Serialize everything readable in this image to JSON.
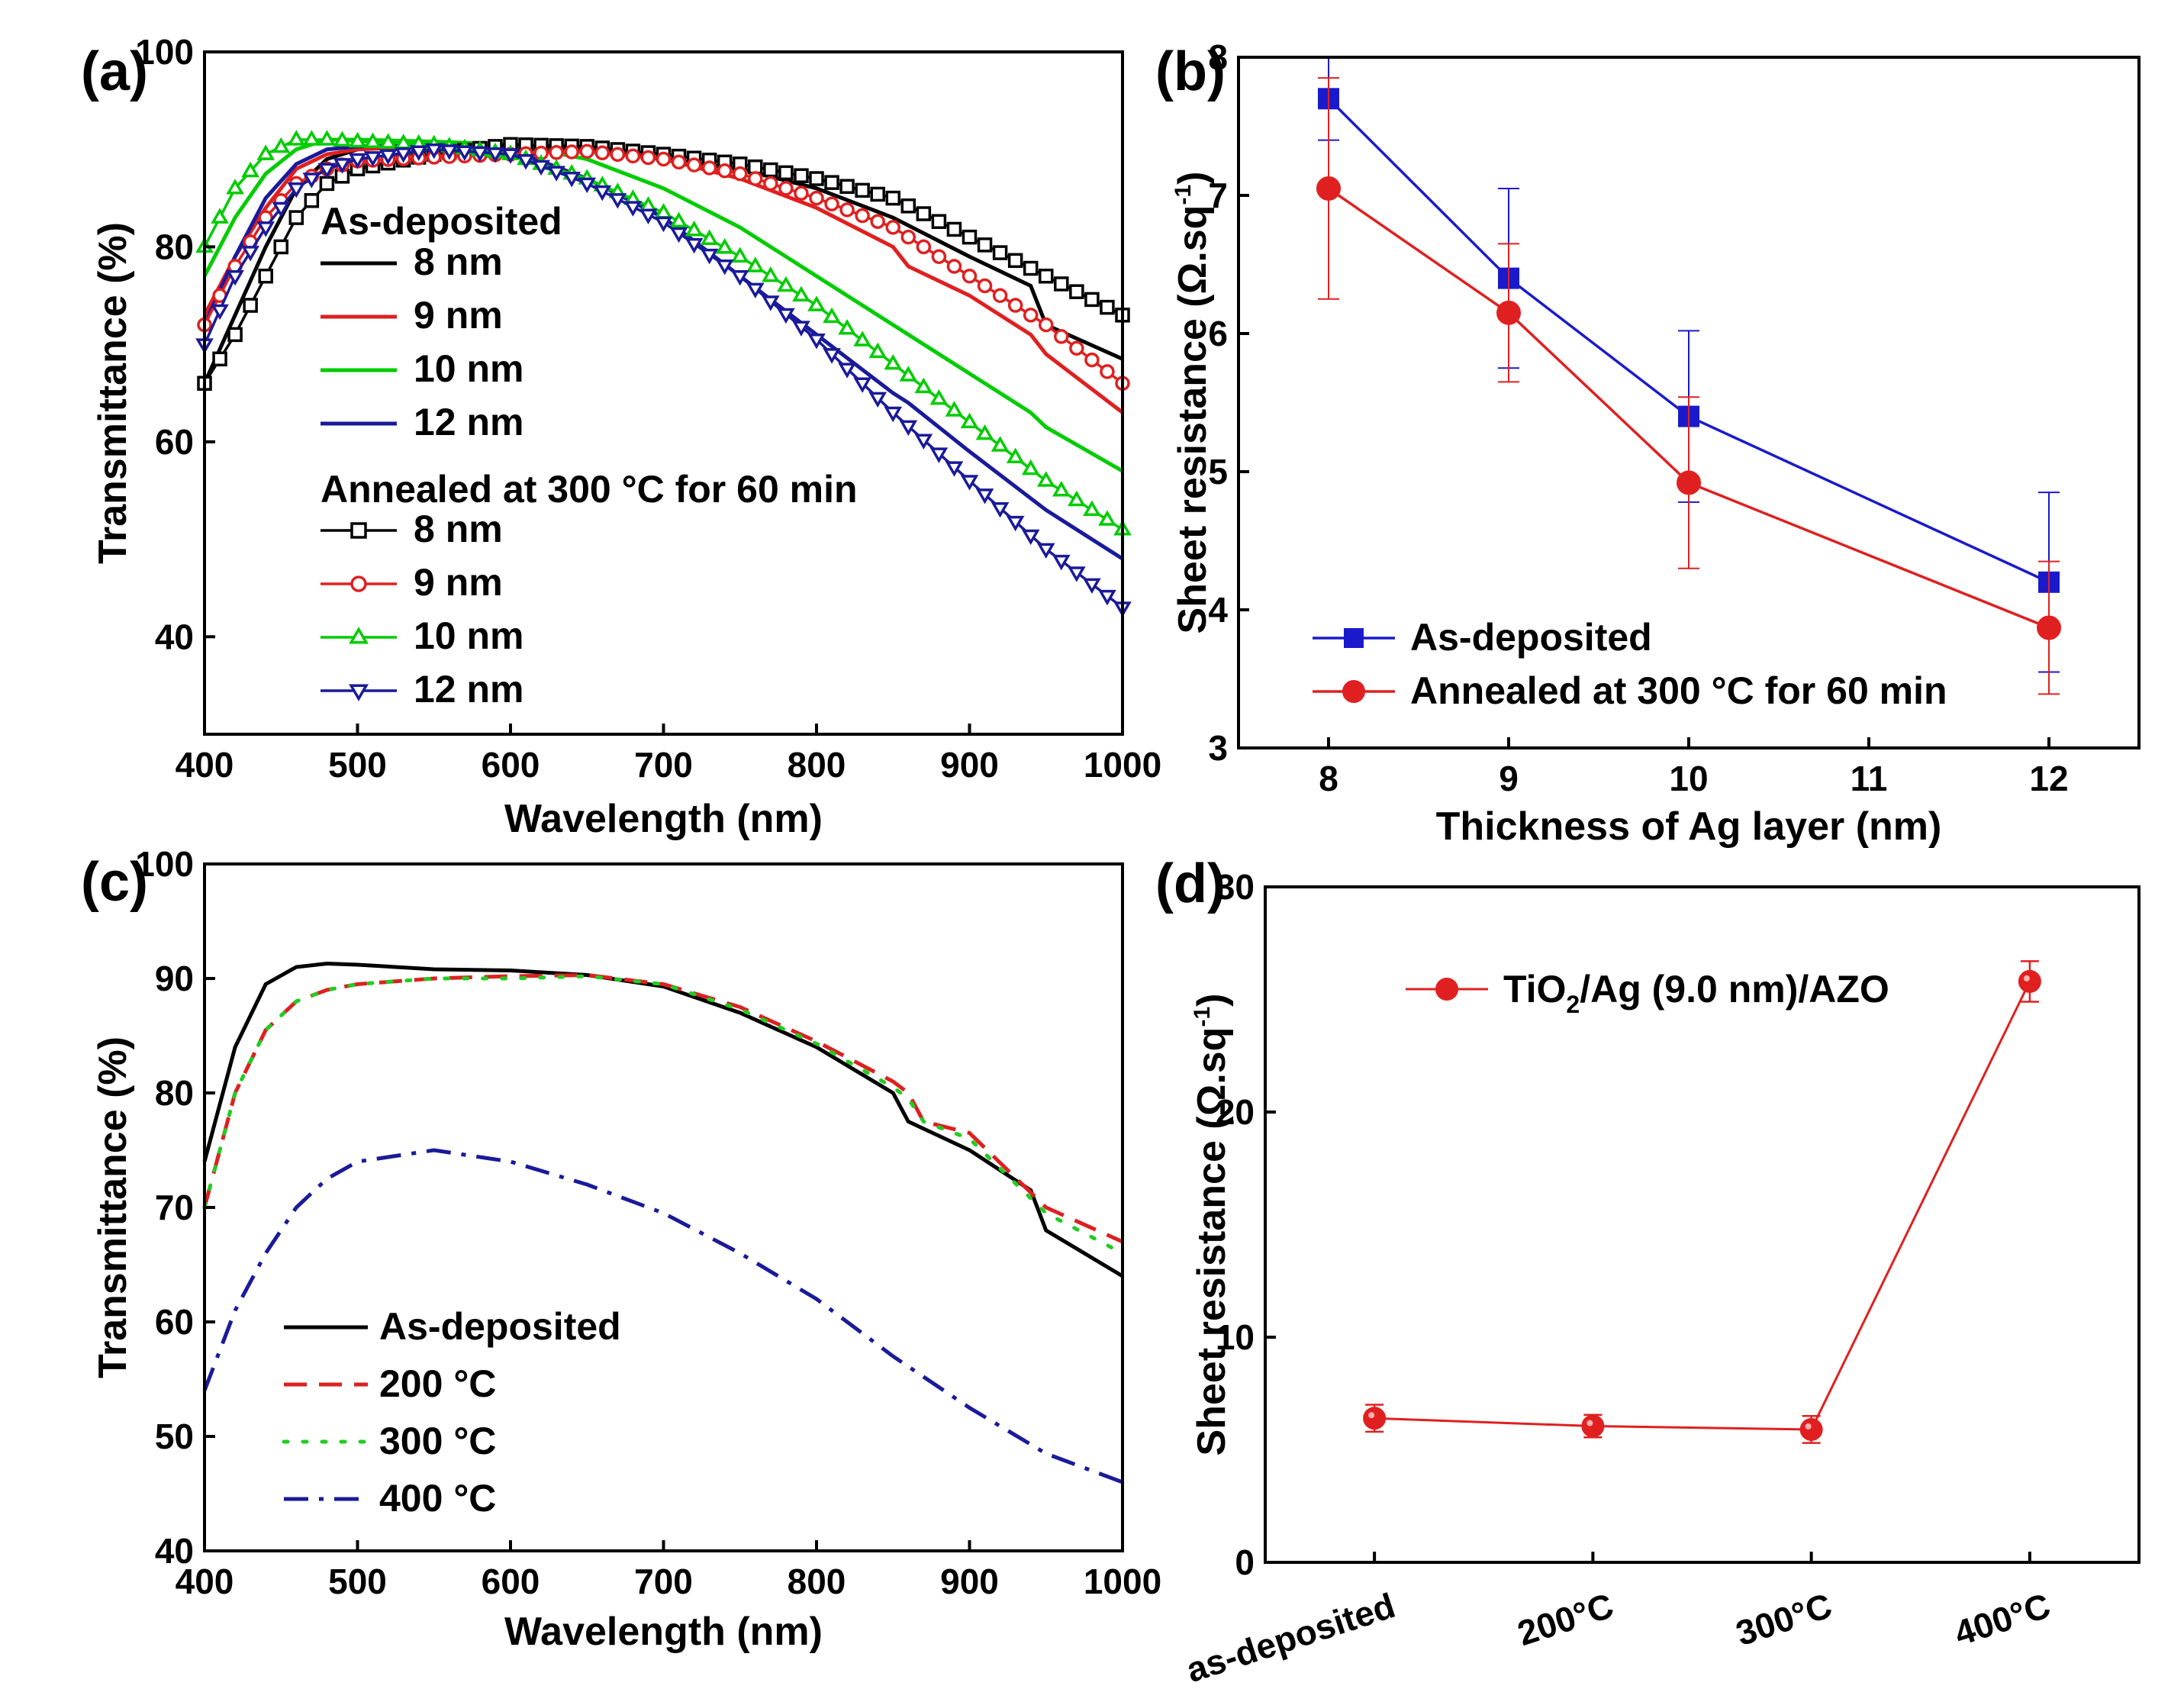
{
  "chart_data": [
    {
      "id": "a",
      "panel_label": "(a)",
      "type": "line",
      "title": "",
      "xlabel": "Wavelength (nm)",
      "ylabel": "Transmittance (%)",
      "xlim": [
        400,
        1000
      ],
      "ylim": [
        30,
        100
      ],
      "xticks": [
        400,
        500,
        600,
        700,
        800,
        900,
        1000
      ],
      "yticks": [
        40,
        60,
        80,
        100
      ],
      "legend_location": "middle-left",
      "legend": {
        "group1_title": "As-deposited",
        "group2_title": "Annealed at 300 °C for 60 min"
      },
      "series": [
        {
          "name": "8 nm",
          "group": 1,
          "color": "#000000",
          "marker": "none",
          "x": [
            400,
            420,
            440,
            460,
            480,
            500,
            550,
            600,
            650,
            700,
            750,
            800,
            850,
            900,
            940,
            950,
            1000
          ],
          "y": [
            66,
            73,
            80,
            86,
            89,
            90,
            90.5,
            90.5,
            90,
            89,
            88,
            86,
            83,
            79,
            76,
            72,
            68.5
          ]
        },
        {
          "name": "9 nm",
          "group": 1,
          "color": "#e02020",
          "marker": "none",
          "x": [
            400,
            420,
            440,
            460,
            480,
            500,
            550,
            600,
            650,
            700,
            750,
            800,
            850,
            860,
            900,
            940,
            950,
            1000
          ],
          "y": [
            73,
            79,
            84,
            88,
            89.5,
            90,
            90.3,
            90.5,
            90,
            89,
            87,
            84,
            80,
            78,
            75,
            71,
            69,
            63
          ]
        },
        {
          "name": "10 nm",
          "group": 1,
          "color": "#00cc00",
          "marker": "none",
          "x": [
            400,
            420,
            440,
            460,
            480,
            500,
            550,
            600,
            650,
            700,
            750,
            800,
            850,
            860,
            900,
            940,
            950,
            1000
          ],
          "y": [
            77,
            83,
            87.5,
            90,
            91,
            91,
            90.8,
            90.5,
            89,
            86,
            82,
            77,
            72,
            71,
            67,
            63,
            61.5,
            57
          ]
        },
        {
          "name": "12 nm",
          "group": 1,
          "color": "#1a1a9a",
          "marker": "none",
          "x": [
            400,
            420,
            440,
            460,
            480,
            500,
            550,
            600,
            650,
            700,
            750,
            800,
            850,
            860,
            900,
            950,
            1000
          ],
          "y": [
            72,
            79,
            85,
            88.5,
            90,
            90.3,
            90.5,
            90,
            87,
            83,
            77,
            71,
            65,
            64,
            59,
            53,
            48
          ]
        },
        {
          "name": "8 nm",
          "group": 2,
          "color": "#000000",
          "marker": "square",
          "x": [
            400,
            420,
            440,
            460,
            480,
            500,
            550,
            600,
            650,
            700,
            750,
            800,
            850,
            900,
            950,
            1000
          ],
          "y": [
            66,
            71,
            77,
            83,
            86.5,
            88,
            89.5,
            90.5,
            90.3,
            89.5,
            88.5,
            87,
            85,
            81,
            77,
            73
          ]
        },
        {
          "name": "9 nm",
          "group": 2,
          "color": "#e02020",
          "marker": "circle",
          "x": [
            400,
            420,
            440,
            460,
            480,
            500,
            550,
            600,
            650,
            700,
            750,
            800,
            850,
            900,
            950,
            1000
          ],
          "y": [
            72,
            78,
            83,
            86.5,
            88,
            88.8,
            89.2,
            89.5,
            89.8,
            89,
            87.5,
            85,
            82,
            77,
            72,
            66
          ]
        },
        {
          "name": "10 nm",
          "group": 2,
          "color": "#00cc00",
          "marker": "triangle-up",
          "x": [
            400,
            420,
            440,
            460,
            480,
            500,
            550,
            600,
            650,
            700,
            750,
            800,
            850,
            900,
            950,
            1000
          ],
          "y": [
            80,
            86,
            89.5,
            91,
            91,
            90.8,
            90.5,
            89.5,
            87,
            83.5,
            79,
            74,
            68,
            62,
            56,
            51
          ]
        },
        {
          "name": "12 nm",
          "group": 2,
          "color": "#1a1a9a",
          "marker": "triangle-down",
          "x": [
            400,
            420,
            440,
            460,
            480,
            500,
            550,
            600,
            650,
            700,
            750,
            800,
            850,
            900,
            950,
            1000
          ],
          "y": [
            70,
            77,
            82,
            86,
            88,
            89,
            90,
            89.5,
            86.5,
            82.5,
            77,
            70.5,
            63,
            56,
            49,
            43
          ]
        }
      ]
    },
    {
      "id": "b",
      "panel_label": "(b)",
      "type": "line",
      "title": "",
      "xlabel": "Thickness  of Ag layer (nm)",
      "ylabel": "Sheet resistance (Ω.sq",
      "ylabel_sup": "-1",
      "ylabel_end": ")",
      "xlim": [
        7.5,
        12.5
      ],
      "ylim": [
        3,
        8
      ],
      "xticks": [
        8,
        9,
        10,
        11,
        12
      ],
      "yticks": [
        3,
        4,
        5,
        6,
        7,
        8
      ],
      "legend_location": "bottom-left",
      "series": [
        {
          "name": "As-deposited",
          "color": "#1a1acc",
          "marker": "square",
          "x": [
            8,
            9,
            10,
            12
          ],
          "y": [
            7.7,
            6.4,
            5.4,
            4.2
          ],
          "err": [
            0.3,
            0.65,
            0.62,
            0.65
          ]
        },
        {
          "name": "Annealed at 300 °C for 60 min",
          "color": "#e02020",
          "marker": "circle",
          "x": [
            8,
            9,
            10,
            12
          ],
          "y": [
            7.05,
            6.15,
            4.92,
            3.87
          ],
          "err": [
            0.8,
            0.5,
            0.62,
            0.48
          ]
        }
      ]
    },
    {
      "id": "c",
      "panel_label": "(c)",
      "type": "line",
      "title": "",
      "xlabel": "Wavelength (nm)",
      "ylabel": "Transmittance (%)",
      "xlim": [
        400,
        1000
      ],
      "ylim": [
        40,
        100
      ],
      "xticks": [
        400,
        500,
        600,
        700,
        800,
        900,
        1000
      ],
      "yticks": [
        40,
        50,
        60,
        70,
        80,
        90,
        100
      ],
      "legend_location": "bottom-left",
      "series": [
        {
          "name": "As-deposited",
          "color": "#000000",
          "dash": "solid",
          "x": [
            400,
            420,
            440,
            460,
            480,
            500,
            550,
            600,
            650,
            700,
            750,
            800,
            850,
            860,
            900,
            940,
            950,
            1000
          ],
          "y": [
            74,
            84,
            89.5,
            91,
            91.3,
            91.2,
            90.8,
            90.7,
            90.3,
            89.3,
            87,
            84,
            80,
            77.5,
            75,
            71.5,
            68,
            64
          ]
        },
        {
          "name": "200 °C",
          "color": "#dd2020",
          "dash": "dash",
          "x": [
            400,
            420,
            440,
            460,
            480,
            500,
            550,
            600,
            650,
            700,
            750,
            800,
            850,
            860,
            870,
            900,
            950,
            1000
          ],
          "y": [
            70,
            80,
            85.5,
            88,
            89,
            89.5,
            90,
            90.2,
            90.3,
            89.5,
            87.5,
            84.5,
            81,
            80,
            77.5,
            76.5,
            70,
            67
          ]
        },
        {
          "name": "300 °C",
          "color": "#22cc22",
          "dash": "dot",
          "x": [
            400,
            420,
            440,
            460,
            480,
            500,
            550,
            600,
            650,
            700,
            750,
            800,
            850,
            860,
            870,
            900,
            950,
            1000
          ],
          "y": [
            70,
            80,
            85.5,
            88,
            89,
            89.5,
            90,
            90,
            90.2,
            89.5,
            87.3,
            84.3,
            80.5,
            79.5,
            77.5,
            76,
            69.5,
            66
          ]
        },
        {
          "name": "400 °C",
          "color": "#1a1a9a",
          "dash": "dashdot",
          "x": [
            400,
            420,
            440,
            460,
            480,
            500,
            550,
            600,
            650,
            700,
            750,
            800,
            850,
            900,
            950,
            1000
          ],
          "y": [
            54,
            61,
            66,
            70,
            72.5,
            74,
            75,
            74,
            72,
            69.5,
            66,
            62,
            57,
            52.5,
            48.5,
            46
          ]
        }
      ]
    },
    {
      "id": "d",
      "panel_label": "(d)",
      "type": "line",
      "title": "",
      "xlabel": "",
      "ylabel": "Sheet resistance (Ω.sq",
      "ylabel_sup": "-1",
      "ylabel_end": ")",
      "categories": [
        "as-deposited",
        "200°C",
        "300°C",
        "400°C"
      ],
      "ylim": [
        0,
        30
      ],
      "yticks": [
        0,
        10,
        20,
        30
      ],
      "legend_location": "top-left",
      "series": [
        {
          "name": "TiO",
          "name_sub": "2",
          "name_rest": "/Ag (9.0 nm)/AZO",
          "color": "#e02020",
          "marker": "circle",
          "values": [
            6.4,
            6.05,
            5.9,
            25.8
          ],
          "err": [
            0.6,
            0.5,
            0.6,
            0.9
          ]
        }
      ]
    }
  ]
}
